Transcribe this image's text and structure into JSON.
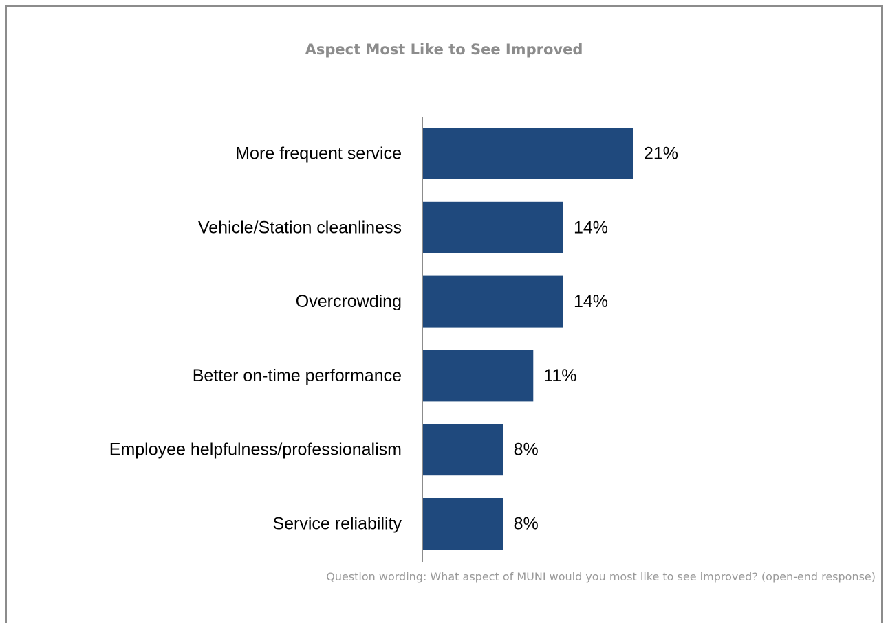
{
  "chart_data": {
    "type": "bar",
    "orientation": "horizontal",
    "title": "Aspect Most Like to See Improved",
    "categories": [
      "More frequent service",
      "Vehicle/Station cleanliness",
      "Overcrowding",
      "Better on-time performance",
      "Employee helpfulness/professionalism",
      "Service reliability"
    ],
    "values": [
      21,
      14,
      14,
      11,
      8,
      8
    ],
    "value_labels": [
      "21%",
      "14%",
      "14%",
      "11%",
      "8%",
      "8%"
    ],
    "unit": "%",
    "xlim": [
      0,
      30
    ],
    "grid": false,
    "legend": "none",
    "bar_color": "#1f497d",
    "footnote": "Question wording: What aspect of MUNI would you most like to see improved? (open-end response)"
  }
}
